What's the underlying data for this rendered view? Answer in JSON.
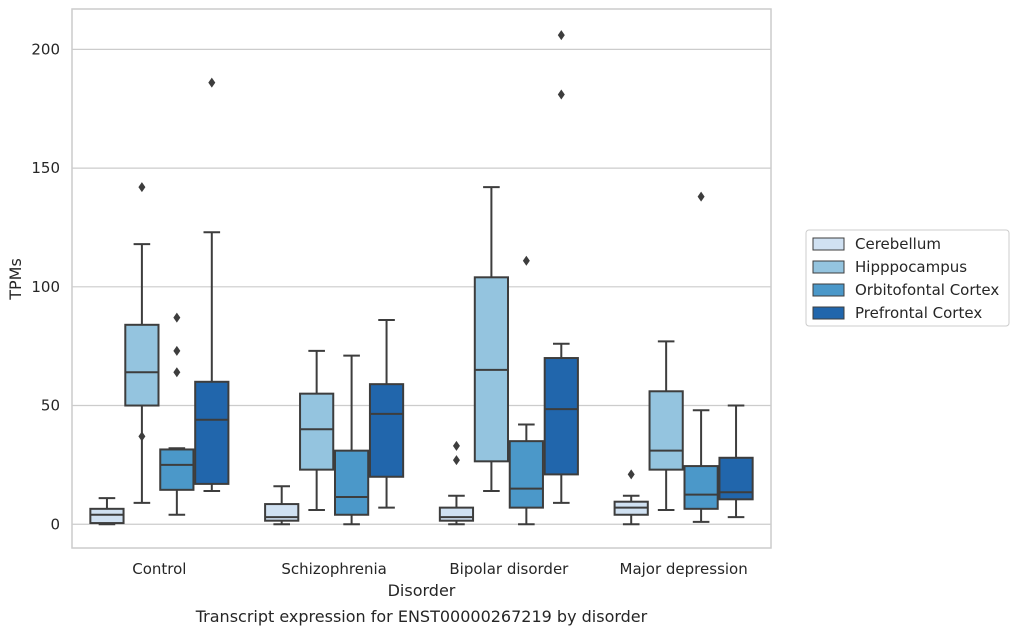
{
  "chart_data": {
    "type": "box",
    "title": "",
    "caption": "Transcript expression for ENST00000267219 by disorder",
    "xlabel": "Disorder",
    "ylabel": "TPMs",
    "ylim": [
      -10,
      217
    ],
    "yticks": [
      0,
      50,
      100,
      150,
      200
    ],
    "grid": "horizontal",
    "legend_position": "right",
    "categories": [
      "Control",
      "Schizophrenia",
      "Bipolar disorder",
      "Major depression"
    ],
    "series": [
      {
        "name": "Cerebellum",
        "color": "#d0e1f2",
        "boxes": [
          {
            "whisker_low": 0,
            "q1": 0.5,
            "median": 4,
            "q3": 6.5,
            "whisker_high": 11,
            "outliers": []
          },
          {
            "whisker_low": 0,
            "q1": 1.5,
            "median": 3,
            "q3": 8.5,
            "whisker_high": 16,
            "outliers": []
          },
          {
            "whisker_low": 0,
            "q1": 1.5,
            "median": 3,
            "q3": 7,
            "whisker_high": 12,
            "outliers": [
              33,
              27
            ]
          },
          {
            "whisker_low": 0,
            "q1": 4,
            "median": 7,
            "q3": 9.5,
            "whisker_high": 12,
            "outliers": [
              21
            ]
          }
        ]
      },
      {
        "name": "Hipppocampus",
        "color": "#94c4df",
        "boxes": [
          {
            "whisker_low": 9,
            "q1": 50,
            "median": 64,
            "q3": 84,
            "whisker_high": 118,
            "outliers": [
              142,
              37
            ]
          },
          {
            "whisker_low": 6,
            "q1": 23,
            "median": 40,
            "q3": 55,
            "whisker_high": 73,
            "outliers": []
          },
          {
            "whisker_low": 14,
            "q1": 26.5,
            "median": 65,
            "q3": 104,
            "whisker_high": 142,
            "outliers": []
          },
          {
            "whisker_low": 6,
            "q1": 23,
            "median": 31,
            "q3": 56,
            "whisker_high": 77,
            "outliers": []
          }
        ]
      },
      {
        "name": "Orbitofontal Cortex",
        "color": "#4b98c9",
        "boxes": [
          {
            "whisker_low": 4,
            "q1": 14.5,
            "median": 25,
            "q3": 31.5,
            "whisker_high": 32,
            "outliers": [
              87,
              73,
              64
            ]
          },
          {
            "whisker_low": 0,
            "q1": 4,
            "median": 11.5,
            "q3": 31,
            "whisker_high": 71,
            "outliers": []
          },
          {
            "whisker_low": 0,
            "q1": 7,
            "median": 15,
            "q3": 35,
            "whisker_high": 42,
            "outliers": [
              111
            ]
          },
          {
            "whisker_low": 1,
            "q1": 6.5,
            "median": 12.5,
            "q3": 24.5,
            "whisker_high": 48,
            "outliers": [
              138
            ]
          }
        ]
      },
      {
        "name": "Prefrontal Cortex",
        "color": "#2166ac",
        "boxes": [
          {
            "whisker_low": 14,
            "q1": 17,
            "median": 44,
            "q3": 60,
            "whisker_high": 123,
            "outliers": [
              186
            ]
          },
          {
            "whisker_low": 7,
            "q1": 20,
            "median": 46.5,
            "q3": 59,
            "whisker_high": 86,
            "outliers": []
          },
          {
            "whisker_low": 9,
            "q1": 21,
            "median": 48.5,
            "q3": 70,
            "whisker_high": 76,
            "outliers": [
              206,
              181
            ]
          },
          {
            "whisker_low": 3,
            "q1": 10.5,
            "median": 13.5,
            "q3": 28,
            "whisker_high": 50,
            "outliers": []
          }
        ]
      }
    ]
  }
}
